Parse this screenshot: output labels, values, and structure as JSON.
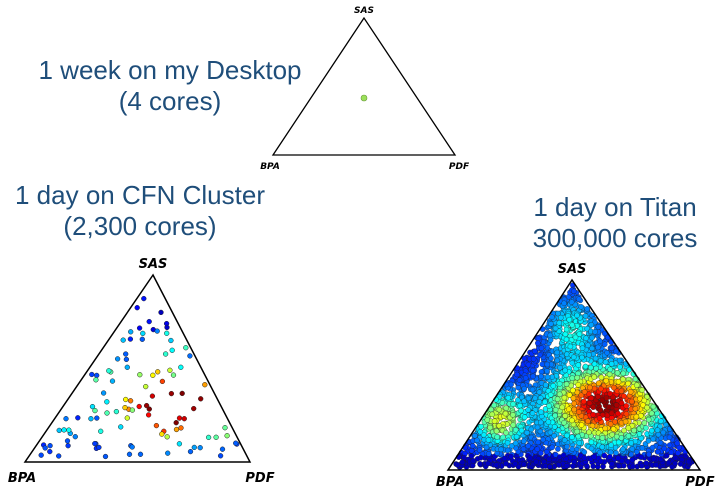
{
  "panels": [
    {
      "caption_line1": "1 week on my Desktop",
      "caption_line2": "(4 cores)",
      "vertices": {
        "top": "SAS",
        "left": "BPA",
        "right": "PDF"
      }
    },
    {
      "caption_line1": "1 day on CFN Cluster",
      "caption_line2": "(2,300 cores)",
      "vertices": {
        "top": "SAS",
        "left": "BPA",
        "right": "PDF"
      }
    },
    {
      "caption_line1": "1 day on Titan",
      "caption_line2": "300,000 cores",
      "vertices": {
        "top": "SAS",
        "left": "BPA",
        "right": "PDF"
      }
    }
  ],
  "colors": {
    "caption": "#1f4e7a",
    "colormap": "jet",
    "single_point": "#9be05a"
  }
}
